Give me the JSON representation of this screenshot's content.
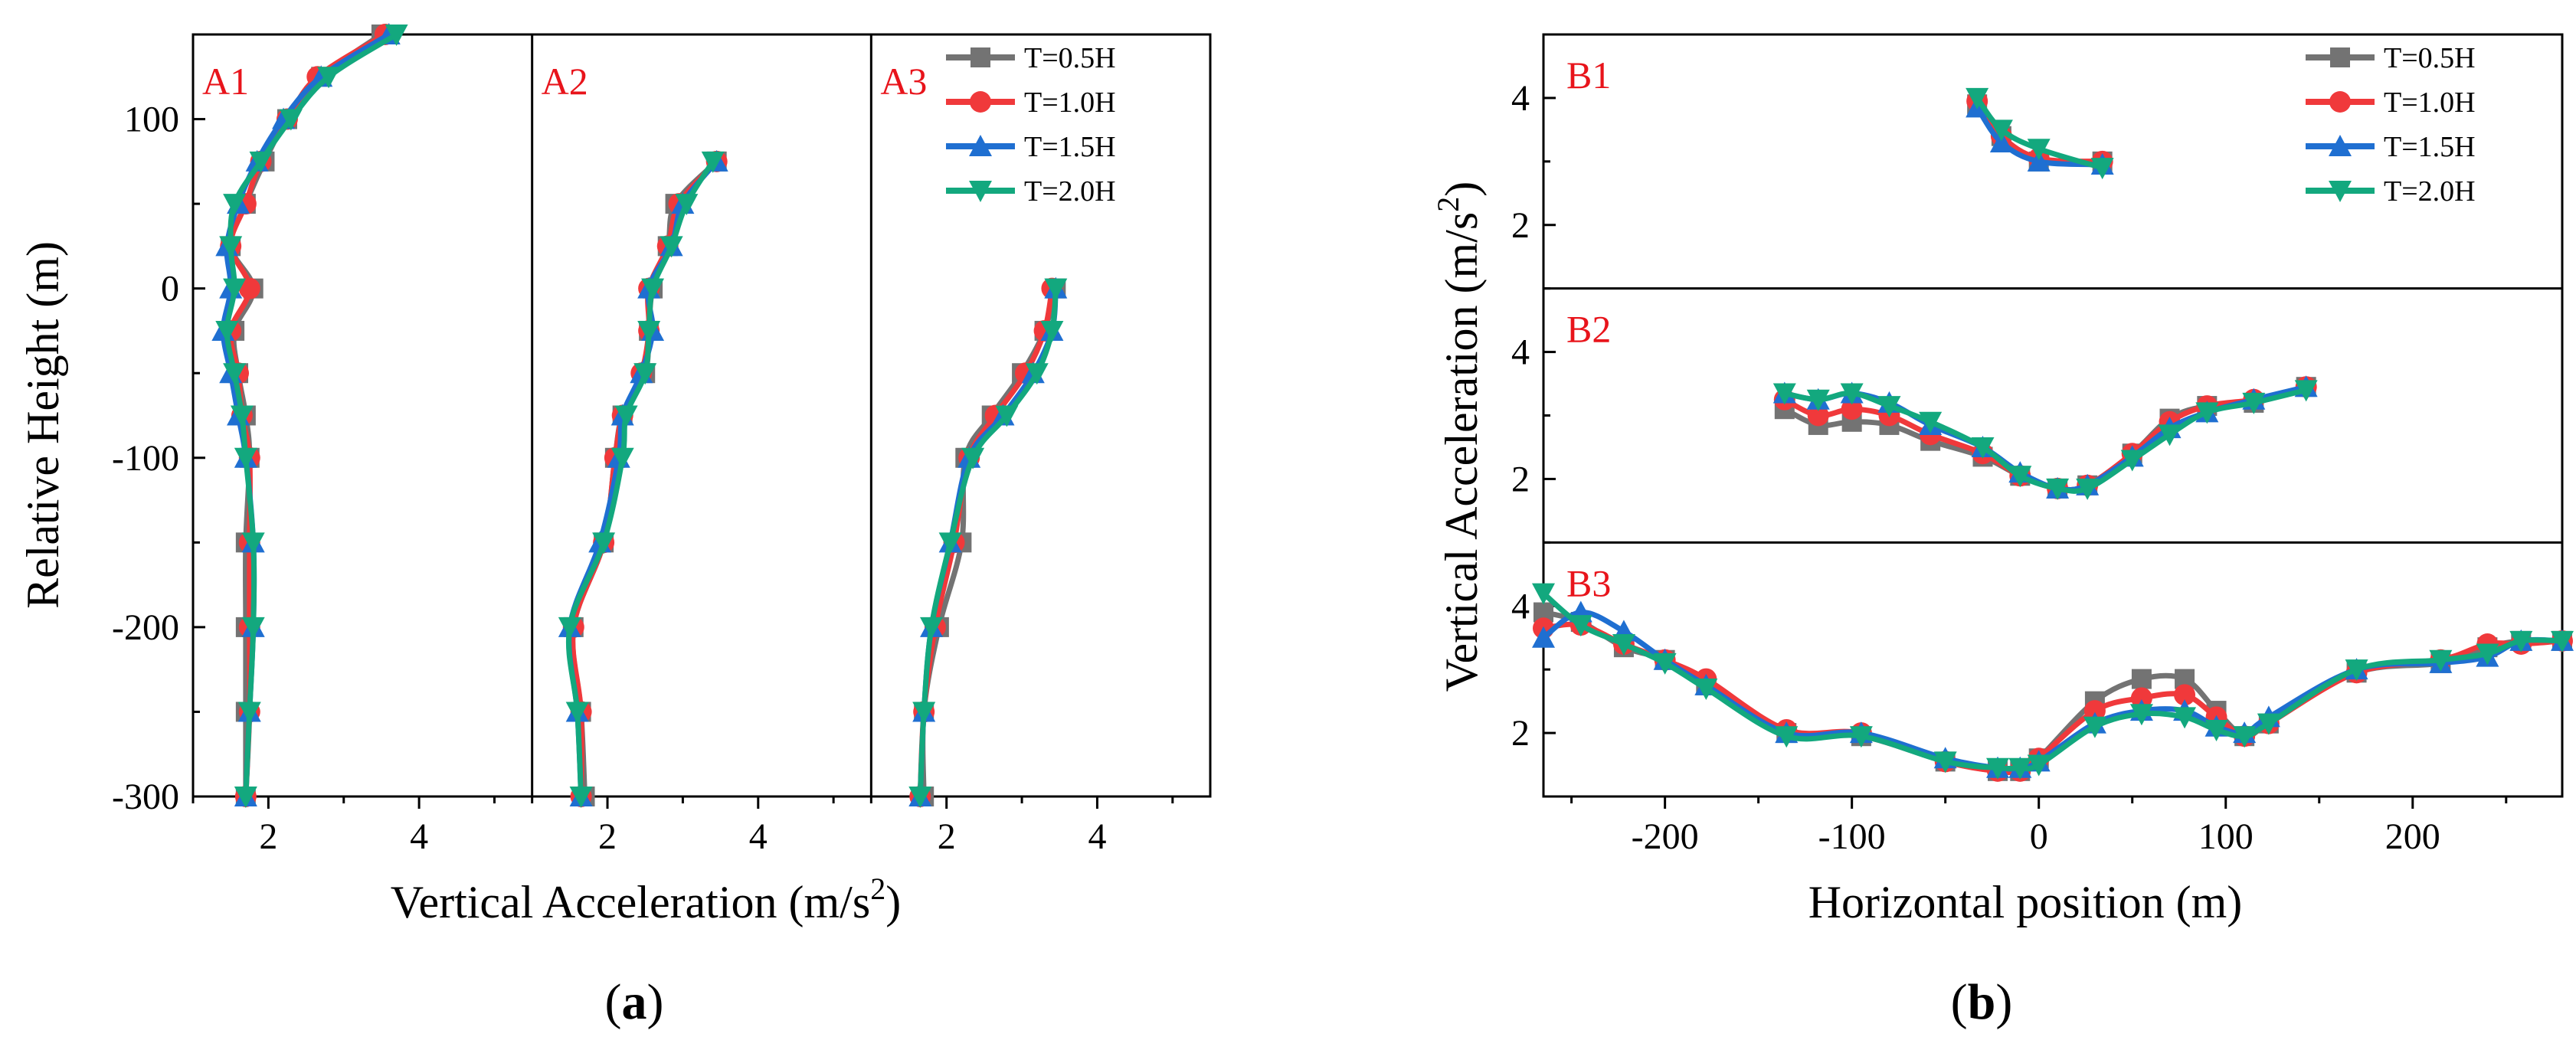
{
  "chart_data": [
    {
      "id": "a",
      "type": "line",
      "figure_label": {
        "open": "(",
        "letter": "a",
        "close": ")"
      },
      "xlabel": "Vertical Acceleration (m/s",
      "xlabel_sup": "2",
      "xlabel_end": ")",
      "ylabel": "Relative Height (m)",
      "ylim": [
        -300,
        150
      ],
      "yticks": [
        100,
        0,
        -100,
        -200,
        -300
      ],
      "xlim_per_panel": [
        1,
        5.5
      ],
      "xticks": [
        2,
        4
      ],
      "legend": [
        "T=0.5H",
        "T=1.0H",
        "T=1.5H",
        "T=2.0H"
      ],
      "series_colors": [
        "#737373",
        "#f0393b",
        "#1f6fd1",
        "#13a87e"
      ],
      "series_markers": [
        "square",
        "circle",
        "triangle-up",
        "triangle-down"
      ],
      "panels": [
        {
          "label": "A1",
          "y": [
            150,
            125,
            100,
            75,
            50,
            25,
            0,
            -25,
            -50,
            -75,
            -100,
            -150,
            -200,
            -250,
            -300
          ],
          "series": [
            {
              "name": "T=0.5H",
              "values": [
                3.5,
                2.7,
                2.25,
                1.95,
                1.7,
                1.5,
                1.8,
                1.55,
                1.6,
                1.7,
                1.75,
                1.7,
                1.7,
                1.7,
                1.7
              ]
            },
            {
              "name": "T=1.0H",
              "values": [
                3.55,
                2.65,
                2.25,
                1.9,
                1.7,
                1.5,
                1.75,
                1.5,
                1.6,
                1.65,
                1.75,
                1.75,
                1.75,
                1.75,
                1.7
              ]
            },
            {
              "name": "T=1.5H",
              "values": [
                3.6,
                2.7,
                2.2,
                1.85,
                1.6,
                1.45,
                1.5,
                1.4,
                1.5,
                1.6,
                1.7,
                1.8,
                1.8,
                1.75,
                1.7
              ]
            },
            {
              "name": "T=2.0H",
              "values": [
                3.7,
                2.8,
                2.3,
                1.9,
                1.55,
                1.5,
                1.55,
                1.45,
                1.55,
                1.65,
                1.7,
                1.8,
                1.8,
                1.75,
                1.7
              ]
            }
          ]
        },
        {
          "label": "A2",
          "y": [
            75,
            50,
            25,
            0,
            -25,
            -50,
            -75,
            -100,
            -150,
            -200,
            -250,
            -300
          ],
          "series": [
            {
              "name": "T=0.5H",
              "values": [
                3.45,
                2.9,
                2.8,
                2.6,
                2.55,
                2.5,
                2.2,
                2.1,
                1.95,
                1.55,
                1.65,
                1.7
              ]
            },
            {
              "name": "T=1.0H",
              "values": [
                3.45,
                2.95,
                2.8,
                2.55,
                2.55,
                2.45,
                2.2,
                2.1,
                1.95,
                1.55,
                1.65,
                1.65
              ]
            },
            {
              "name": "T=1.5H",
              "values": [
                3.45,
                3.0,
                2.85,
                2.55,
                2.6,
                2.45,
                2.2,
                2.15,
                1.9,
                1.5,
                1.6,
                1.65
              ]
            },
            {
              "name": "T=2.0H",
              "values": [
                3.4,
                3.05,
                2.85,
                2.6,
                2.55,
                2.5,
                2.25,
                2.2,
                1.95,
                1.5,
                1.6,
                1.65
              ]
            }
          ]
        },
        {
          "label": "A3",
          "y": [
            0,
            -25,
            -50,
            -75,
            -100,
            -150,
            -200,
            -250,
            -300
          ],
          "series": [
            {
              "name": "T=0.5H",
              "values": [
                3.45,
                3.3,
                3.0,
                2.6,
                2.25,
                2.2,
                1.9,
                1.7,
                1.7
              ]
            },
            {
              "name": "T=1.0H",
              "values": [
                3.4,
                3.3,
                3.05,
                2.65,
                2.3,
                2.1,
                1.85,
                1.7,
                1.65
              ]
            },
            {
              "name": "T=1.5H",
              "values": [
                3.45,
                3.4,
                3.15,
                2.75,
                2.3,
                2.05,
                1.8,
                1.7,
                1.65
              ]
            },
            {
              "name": "T=2.0H",
              "values": [
                3.45,
                3.4,
                3.2,
                2.8,
                2.35,
                2.05,
                1.8,
                1.7,
                1.65
              ]
            }
          ]
        }
      ]
    },
    {
      "id": "b",
      "type": "line",
      "figure_label": {
        "open": "(",
        "letter": "b",
        "close": ")"
      },
      "xlabel": "Horizontal position (m)",
      "ylabel": "Vertical Acceleration (m/s",
      "ylabel_sup": "2",
      "ylabel_end": ")",
      "xlim": [
        -265,
        280
      ],
      "xticks": [
        -200,
        -100,
        0,
        100,
        200
      ],
      "ylim_per_panel": [
        1,
        5
      ],
      "yticks": [
        2,
        4
      ],
      "legend": [
        "T=0.5H",
        "T=1.0H",
        "T=1.5H",
        "T=2.0H"
      ],
      "series_colors": [
        "#737373",
        "#f0393b",
        "#1f6fd1",
        "#13a87e"
      ],
      "series_markers": [
        "square",
        "circle",
        "triangle-up",
        "triangle-down"
      ],
      "panels": [
        {
          "label": "B1",
          "x": [
            -33,
            -20,
            0,
            34
          ],
          "series": [
            {
              "name": "T=0.5H",
              "values": [
                3.9,
                3.4,
                3.0,
                3.0
              ]
            },
            {
              "name": "T=1.0H",
              "values": [
                3.95,
                3.4,
                3.05,
                3.0
              ]
            },
            {
              "name": "T=1.5H",
              "values": [
                3.85,
                3.3,
                3.0,
                2.95
              ]
            },
            {
              "name": "T=2.0H",
              "values": [
                4.0,
                3.5,
                3.2,
                2.9
              ]
            }
          ]
        },
        {
          "label": "B2",
          "x": [
            -136,
            -118,
            -100,
            -80,
            -58,
            -30,
            -10,
            10,
            26,
            50,
            70,
            90,
            115,
            143
          ],
          "series": [
            {
              "name": "T=0.5H",
              "values": [
                3.1,
                2.85,
                2.9,
                2.85,
                2.6,
                2.35,
                2.05,
                1.85,
                1.9,
                2.4,
                2.95,
                3.15,
                3.2,
                3.45
              ]
            },
            {
              "name": "T=1.0H",
              "values": [
                3.25,
                3.0,
                3.1,
                3.0,
                2.7,
                2.4,
                2.05,
                1.85,
                1.9,
                2.4,
                2.9,
                3.15,
                3.25,
                3.45
              ]
            },
            {
              "name": "T=1.5H",
              "values": [
                3.35,
                3.25,
                3.35,
                3.2,
                2.85,
                2.5,
                2.1,
                1.85,
                1.9,
                2.35,
                2.8,
                3.05,
                3.25,
                3.45
              ]
            },
            {
              "name": "T=2.0H",
              "values": [
                3.35,
                3.25,
                3.35,
                3.15,
                2.9,
                2.5,
                2.05,
                1.85,
                1.85,
                2.3,
                2.7,
                3.05,
                3.2,
                3.4
              ]
            }
          ]
        },
        {
          "label": "B3",
          "x": [
            -265,
            -245,
            -222,
            -200,
            -178,
            -135,
            -95,
            -50,
            -22,
            -10,
            0,
            30,
            55,
            78,
            95,
            110,
            123,
            170,
            215,
            240,
            258,
            280
          ],
          "series": [
            {
              "name": "T=0.5H",
              "values": [
                3.9,
                3.75,
                3.35,
                3.15,
                2.75,
                2.0,
                1.95,
                1.55,
                1.4,
                1.4,
                1.6,
                2.5,
                2.85,
                2.85,
                2.35,
                1.95,
                2.15,
                2.95,
                3.1,
                3.35,
                3.45,
                3.45
              ]
            },
            {
              "name": "T=1.0H",
              "values": [
                3.65,
                3.7,
                3.4,
                3.15,
                2.85,
                2.05,
                2.0,
                1.55,
                1.4,
                1.4,
                1.6,
                2.35,
                2.55,
                2.6,
                2.25,
                1.95,
                2.15,
                2.95,
                3.15,
                3.4,
                3.4,
                3.45
              ]
            },
            {
              "name": "T=1.5H",
              "values": [
                3.5,
                3.9,
                3.6,
                3.15,
                2.75,
                2.0,
                2.0,
                1.6,
                1.45,
                1.45,
                1.55,
                2.15,
                2.35,
                2.35,
                2.1,
                2.0,
                2.25,
                3.0,
                3.1,
                3.2,
                3.45,
                3.45
              ]
            },
            {
              "name": "T=2.0H",
              "values": [
                4.2,
                3.7,
                3.4,
                3.1,
                2.7,
                1.95,
                1.95,
                1.55,
                1.45,
                1.45,
                1.5,
                2.1,
                2.3,
                2.25,
                2.05,
                1.95,
                2.15,
                3.0,
                3.15,
                3.25,
                3.45,
                3.45
              ]
            }
          ]
        }
      ]
    }
  ]
}
